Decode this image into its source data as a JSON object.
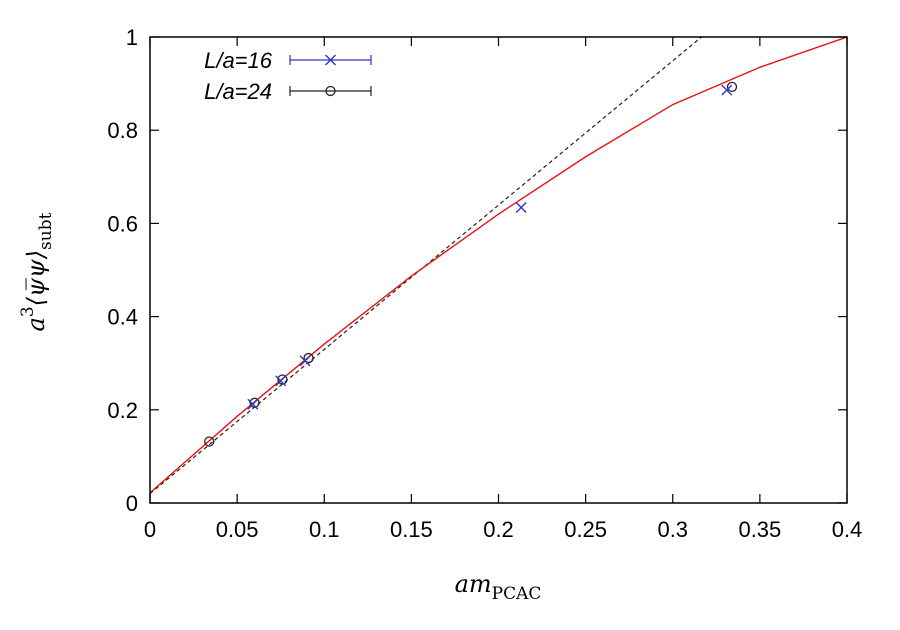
{
  "chart_data": {
    "type": "scatter",
    "xlabel": {
      "main": "am",
      "sub": "PCAC"
    },
    "ylabel": {
      "main": "a",
      "sup": "3",
      "bracket": "⟨ψψ⟩",
      "sub": "subt"
    },
    "xlim": [
      0,
      0.4
    ],
    "ylim": [
      0,
      1
    ],
    "xticks": [
      0,
      0.05,
      0.1,
      0.15,
      0.2,
      0.25,
      0.3,
      0.35,
      0.4
    ],
    "xtick_labels": [
      "0",
      "0.05",
      "0.1",
      "0.15",
      "0.2",
      "0.25",
      "0.3",
      "0.35",
      "0.4"
    ],
    "yticks": [
      0,
      0.2,
      0.4,
      0.6,
      0.8,
      1
    ],
    "ytick_labels": [
      "0",
      "0.2",
      "0.4",
      "0.6",
      "0.8",
      "1"
    ],
    "grid": false,
    "legend_position": "top-left",
    "series": [
      {
        "name": "L/a=16",
        "marker": "x",
        "color": "#3333cc",
        "points": [
          {
            "x": 0.059,
            "y": 0.212
          },
          {
            "x": 0.075,
            "y": 0.262
          },
          {
            "x": 0.089,
            "y": 0.305
          },
          {
            "x": 0.213,
            "y": 0.634
          },
          {
            "x": 0.331,
            "y": 0.886
          }
        ]
      },
      {
        "name": "L/a=24",
        "marker": "circle",
        "color": "#222222",
        "points": [
          {
            "x": 0.034,
            "y": 0.132
          },
          {
            "x": 0.06,
            "y": 0.215
          },
          {
            "x": 0.076,
            "y": 0.265
          },
          {
            "x": 0.091,
            "y": 0.311
          },
          {
            "x": 0.334,
            "y": 0.893
          }
        ]
      }
    ],
    "fit_curve": {
      "color": "#ee1111",
      "style": "solid",
      "points": [
        {
          "x": 0.0,
          "y": 0.022
        },
        {
          "x": 0.05,
          "y": 0.186
        },
        {
          "x": 0.1,
          "y": 0.341
        },
        {
          "x": 0.15,
          "y": 0.487
        },
        {
          "x": 0.2,
          "y": 0.62
        },
        {
          "x": 0.25,
          "y": 0.743
        },
        {
          "x": 0.3,
          "y": 0.855
        },
        {
          "x": 0.35,
          "y": 0.935
        },
        {
          "x": 0.4,
          "y": 1.0
        }
      ]
    },
    "linear_fit": {
      "color": "#222222",
      "style": "dashed",
      "points": [
        {
          "x": 0.0,
          "y": 0.02
        },
        {
          "x": 0.3165,
          "y": 1.0
        }
      ]
    }
  }
}
